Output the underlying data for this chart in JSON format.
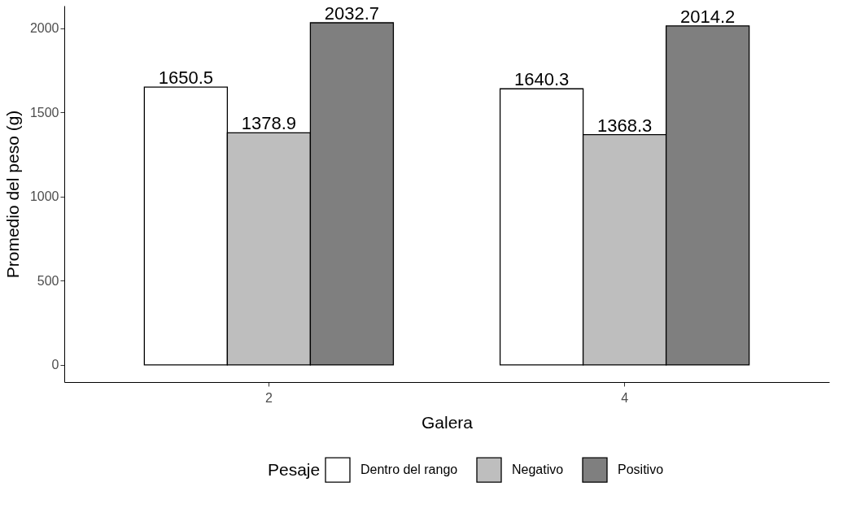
{
  "chart_data": {
    "type": "bar",
    "xlabel": "Galera",
    "ylabel": "Promedio del peso (g)",
    "legend_title": "Pesaje",
    "categories": [
      "2",
      "4"
    ],
    "series": [
      {
        "name": "Dentro del rango",
        "color": "#ffffff",
        "values": [
          1650.5,
          1640.3
        ]
      },
      {
        "name": "Negativo",
        "color": "#bebebe",
        "values": [
          1378.9,
          1368.3
        ]
      },
      {
        "name": "Positivo",
        "color": "#7f7f7f",
        "values": [
          2032.7,
          2014.2
        ]
      }
    ],
    "ylim": [
      -102,
      2134
    ],
    "yticks": [
      0,
      500,
      1000,
      1500,
      2000
    ],
    "grid": false,
    "legend": "bottom",
    "data_labels": true
  }
}
